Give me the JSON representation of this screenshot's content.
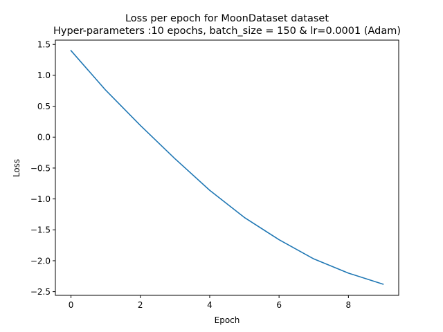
{
  "chart_data": {
    "type": "line",
    "title": "Loss per epoch for MoonDataset dataset",
    "subtitle": "Hyper-parameters :10 epochs, batch_size = 150 & lr=0.0001 (Adam)",
    "xlabel": "Epoch",
    "ylabel": "Loss",
    "xlim": [
      -0.45,
      9.45
    ],
    "ylim": [
      -2.56,
      1.57
    ],
    "xticks": [
      0,
      2,
      4,
      6,
      8
    ],
    "xtick_labels": [
      "0",
      "2",
      "4",
      "6",
      "8"
    ],
    "yticks": [
      1.5,
      1.0,
      0.5,
      0.0,
      -0.5,
      -1.0,
      -1.5,
      -2.0,
      -2.5
    ],
    "ytick_labels": [
      "1.5",
      "1.0",
      "0.5",
      "0.0",
      "−0.5",
      "−1.0",
      "−1.5",
      "−2.0",
      "−2.5"
    ],
    "grid": false,
    "series": [
      {
        "name": "Loss",
        "color": "#1f77b4",
        "x": [
          0,
          1,
          2,
          3,
          4,
          5,
          6,
          7,
          8,
          9
        ],
        "y": [
          1.4,
          0.76,
          0.19,
          -0.35,
          -0.86,
          -1.3,
          -1.66,
          -1.97,
          -2.2,
          -2.38
        ]
      }
    ]
  }
}
